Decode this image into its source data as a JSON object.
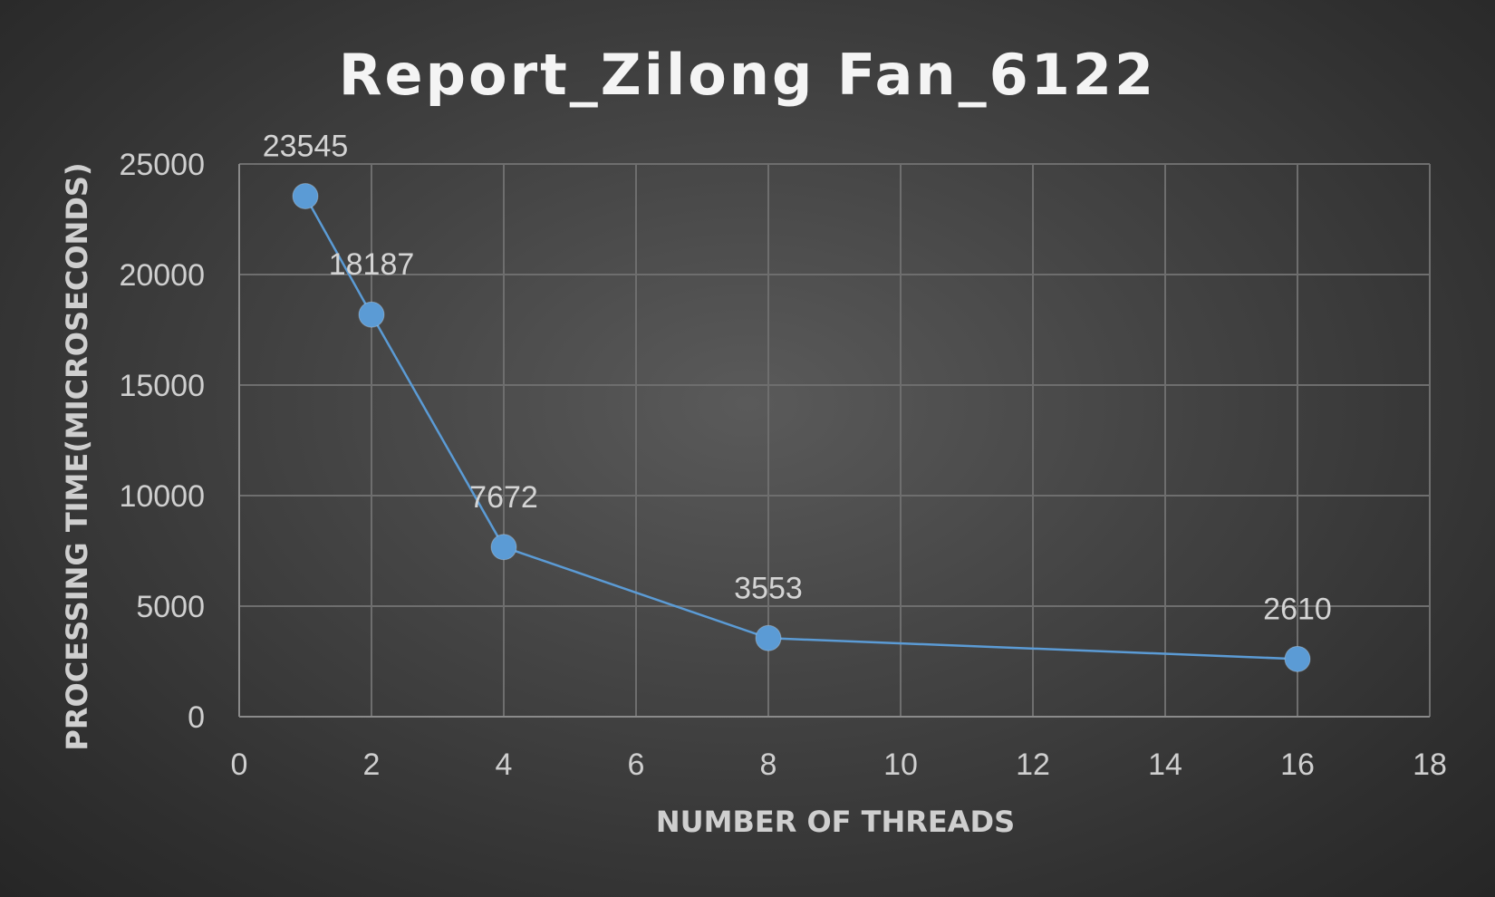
{
  "chart_data": {
    "type": "scatter",
    "title": "Report_Zilong Fan_6122",
    "xlabel": "NUMBER OF THREADS",
    "ylabel": "PROCESSING TIME(MICROSECONDS)",
    "xlim": [
      0,
      18
    ],
    "ylim": [
      0,
      25000
    ],
    "x_ticks": [
      0,
      2,
      4,
      6,
      8,
      10,
      12,
      14,
      16,
      18
    ],
    "y_ticks": [
      0,
      5000,
      10000,
      15000,
      20000,
      25000
    ],
    "grid": true,
    "legend": "none",
    "series": [
      {
        "color": "#5b9bd5",
        "marker_color": "#5b9bd5",
        "lines": true,
        "markers": true,
        "data_labels": true,
        "points": [
          {
            "x": 1,
            "y": 23545,
            "label": "23545"
          },
          {
            "x": 2,
            "y": 18187,
            "label": "18187"
          },
          {
            "x": 4,
            "y": 7672,
            "label": "7672"
          },
          {
            "x": 8,
            "y": 3553,
            "label": "3553"
          },
          {
            "x": 16,
            "y": 2610,
            "label": "2610"
          }
        ]
      }
    ]
  }
}
